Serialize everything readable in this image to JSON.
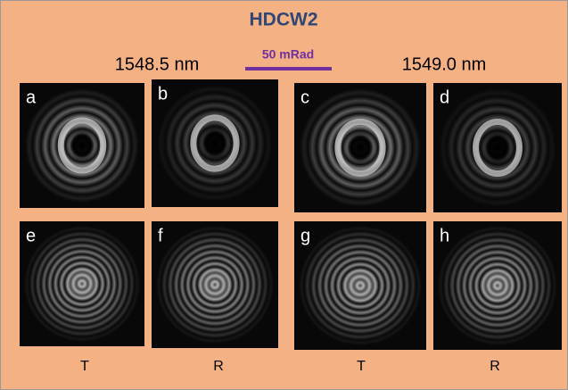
{
  "title": "HDCW2",
  "wavelengths": [
    "1548.5 nm",
    "1549.0 nm"
  ],
  "scale_bar": "50 mRad",
  "panels": [
    {
      "label": "a"
    },
    {
      "label": "b"
    },
    {
      "label": "c"
    },
    {
      "label": "d"
    },
    {
      "label": "e"
    },
    {
      "label": "f"
    },
    {
      "label": "g"
    },
    {
      "label": "h"
    }
  ],
  "column_labels": [
    "T",
    "R",
    "T",
    "R"
  ]
}
